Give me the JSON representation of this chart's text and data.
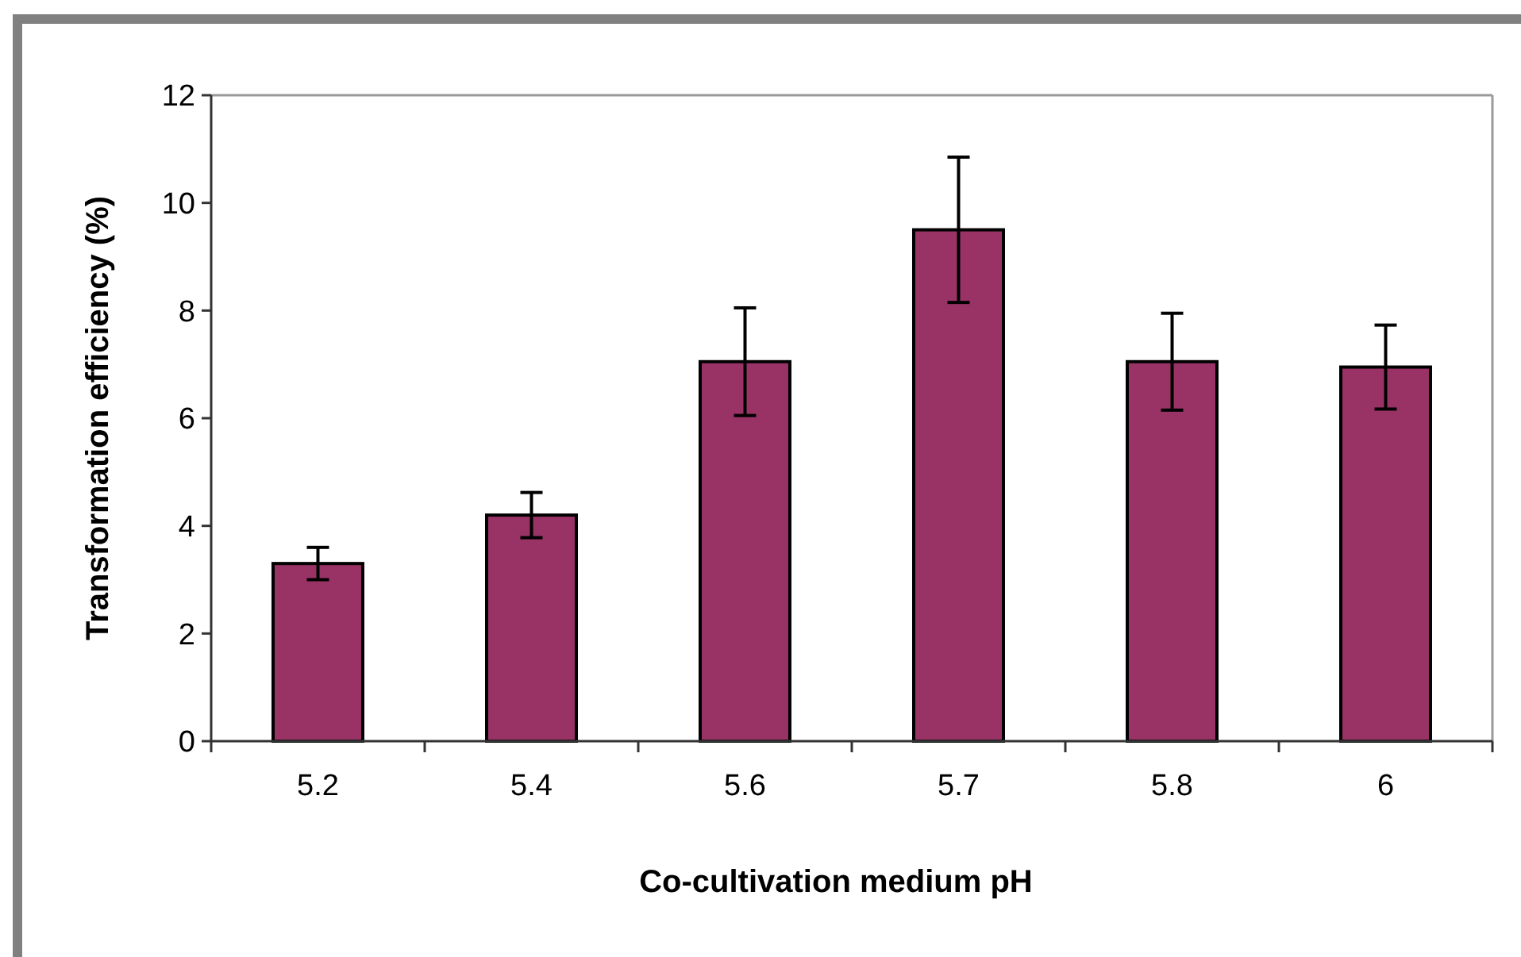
{
  "chart_data": {
    "type": "bar",
    "xlabel": "Co-cultivation medium pH",
    "ylabel": "Transformation efficiency (%)",
    "categories": [
      "5.2",
      "5.4",
      "5.6",
      "5.7",
      "5.8",
      "6"
    ],
    "values": [
      3.3,
      4.2,
      7.05,
      9.5,
      7.05,
      6.95
    ],
    "errors": [
      0.3,
      0.42,
      1.0,
      1.35,
      0.9,
      0.78
    ],
    "color": "#993366",
    "ylim": [
      0,
      12
    ],
    "yticks": [
      0,
      2,
      4,
      6,
      8,
      10,
      12
    ],
    "grid": false
  }
}
